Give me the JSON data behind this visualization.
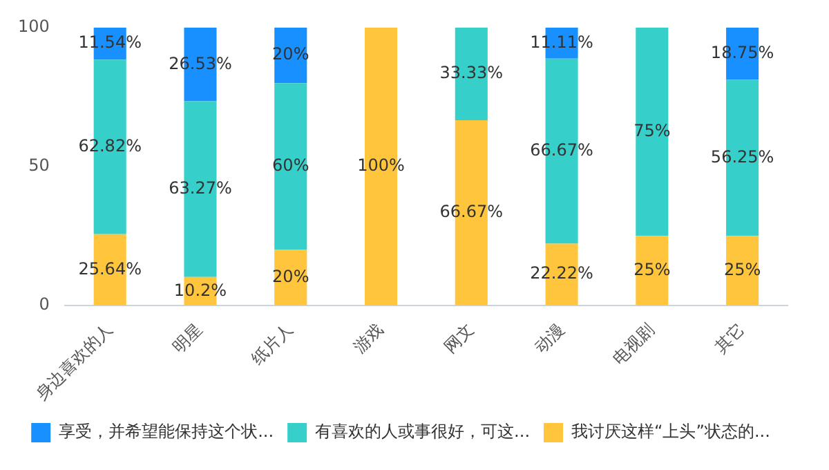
{
  "chart_data": {
    "type": "bar",
    "stacked": true,
    "categories": [
      "身边喜欢的人",
      "明星",
      "纸片人",
      "游戏",
      "网文",
      "动漫",
      "电视剧",
      "其它"
    ],
    "series": [
      {
        "name": "我讨厌这样“上头”状态的...",
        "color": "#ffc53d",
        "values": [
          25.64,
          10.2,
          20,
          100,
          66.67,
          22.22,
          25,
          25
        ],
        "value_labels": [
          "25.64%",
          "10.2%",
          "20%",
          "100%",
          "66.67%",
          "22.22%",
          "25%",
          "25%"
        ]
      },
      {
        "name": "有喜欢的人或事很好，可这...",
        "color": "#36cfc9",
        "values": [
          62.82,
          63.27,
          60,
          0,
          33.33,
          66.67,
          75,
          56.25
        ],
        "value_labels": [
          "62.82%",
          "63.27%",
          "60%",
          null,
          "33.33%",
          "66.67%",
          "75%",
          "56.25%"
        ]
      },
      {
        "name": "享受，并希望能保持这个状...",
        "color": "#1890ff",
        "values": [
          11.54,
          26.53,
          20,
          0,
          0,
          11.11,
          0,
          18.75
        ],
        "value_labels": [
          "11.54%",
          "26.53%",
          "20%",
          null,
          null,
          "11.11%",
          null,
          "18.75%"
        ]
      }
    ],
    "ylim": [
      0,
      100
    ],
    "yticks": [
      0,
      50,
      100
    ],
    "grid": false,
    "legend": "bottom"
  }
}
